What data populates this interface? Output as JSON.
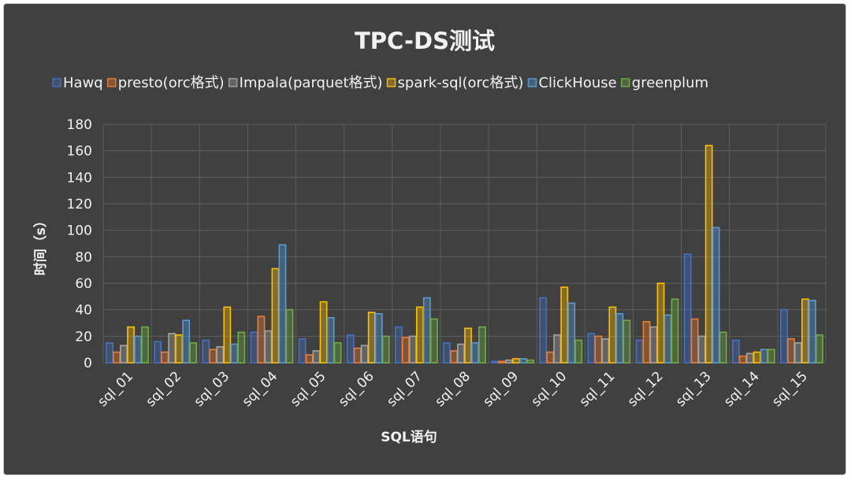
{
  "chart_data": {
    "type": "bar",
    "title": "TPC-DS测试",
    "xlabel": "SQL语句",
    "ylabel": "时间（s）",
    "ylim": [
      0,
      180
    ],
    "yticks": [
      0,
      20,
      40,
      60,
      80,
      100,
      120,
      140,
      160,
      180
    ],
    "grid": true,
    "legend_position": "top",
    "categories": [
      "sql_01",
      "sql_02",
      "sql_03",
      "sql_04",
      "sql_05",
      "sql_06",
      "sql_07",
      "sql_08",
      "sql_09",
      "sql_10",
      "sql_11",
      "sql_12",
      "sql_13",
      "sql_14",
      "sql_15"
    ],
    "series": [
      {
        "name": "Hawq",
        "color": "#4472c4",
        "values": [
          15,
          16,
          17,
          23,
          18,
          21,
          27,
          15,
          1,
          49,
          22,
          17,
          82,
          17,
          40
        ]
      },
      {
        "name": "presto(orc格式)",
        "color": "#ed7d31",
        "values": [
          8,
          8,
          10,
          35,
          6,
          11,
          19,
          9,
          1,
          8,
          20,
          31,
          33,
          5,
          18
        ]
      },
      {
        "name": "Impala(parquet格式)",
        "color": "#a5a5a5",
        "values": [
          13,
          22,
          12,
          24,
          9,
          13,
          20,
          14,
          2,
          21,
          18,
          27,
          20,
          7,
          15
        ]
      },
      {
        "name": "spark-sql(orc格式)",
        "color": "#ffc000",
        "values": [
          27,
          21,
          42,
          71,
          46,
          38,
          42,
          26,
          3,
          57,
          42,
          60,
          164,
          8,
          48
        ]
      },
      {
        "name": "ClickHouse",
        "color": "#5b9bd5",
        "values": [
          20,
          32,
          14,
          89,
          34,
          37,
          49,
          15,
          3,
          45,
          37,
          36,
          102,
          10,
          47
        ]
      },
      {
        "name": "greenplum",
        "color": "#70ad47",
        "values": [
          27,
          15,
          23,
          40,
          15,
          20,
          33,
          27,
          2,
          17,
          32,
          48,
          23,
          10,
          21
        ]
      }
    ]
  }
}
